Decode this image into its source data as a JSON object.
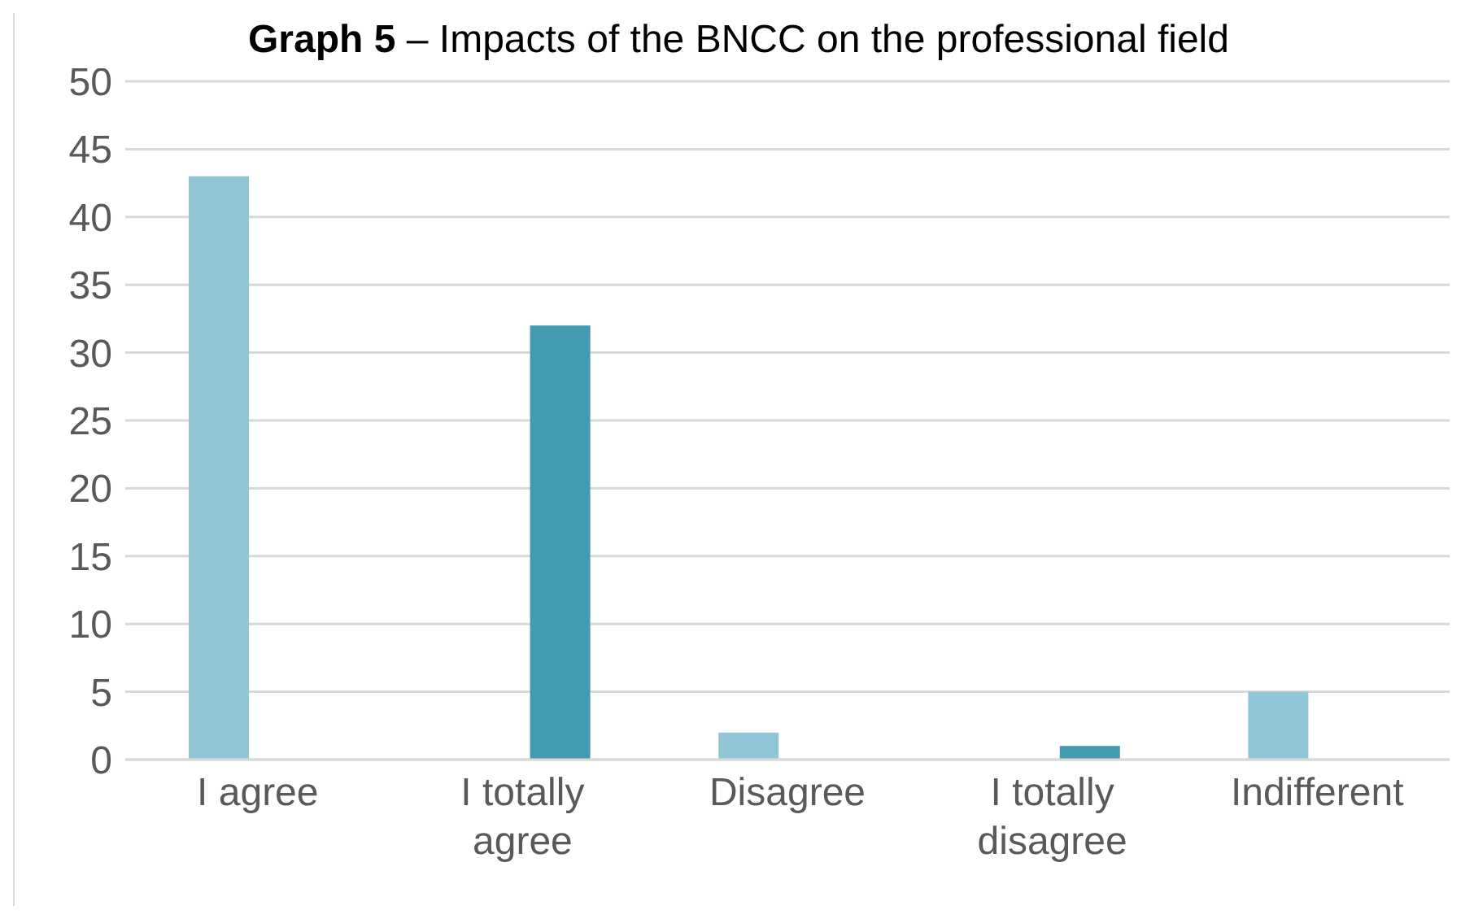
{
  "chart_data": {
    "type": "bar",
    "title": "Graph 5 – Impacts of the BNCC on the professional field",
    "categories": [
      "I agree",
      "I totally agree",
      "Disagree",
      "I totally disagree",
      "Indifferent"
    ],
    "series": [
      {
        "color": "#92c5d6",
        "values": [
          43,
          null,
          2,
          null,
          5
        ]
      },
      {
        "color": "#439bb1",
        "values": [
          null,
          32,
          null,
          1,
          null
        ]
      }
    ],
    "ylim": [
      0,
      50
    ],
    "yticks": [
      0,
      5,
      10,
      15,
      20,
      25,
      30,
      35,
      40,
      45,
      50
    ],
    "grid": "y",
    "legend": false
  }
}
